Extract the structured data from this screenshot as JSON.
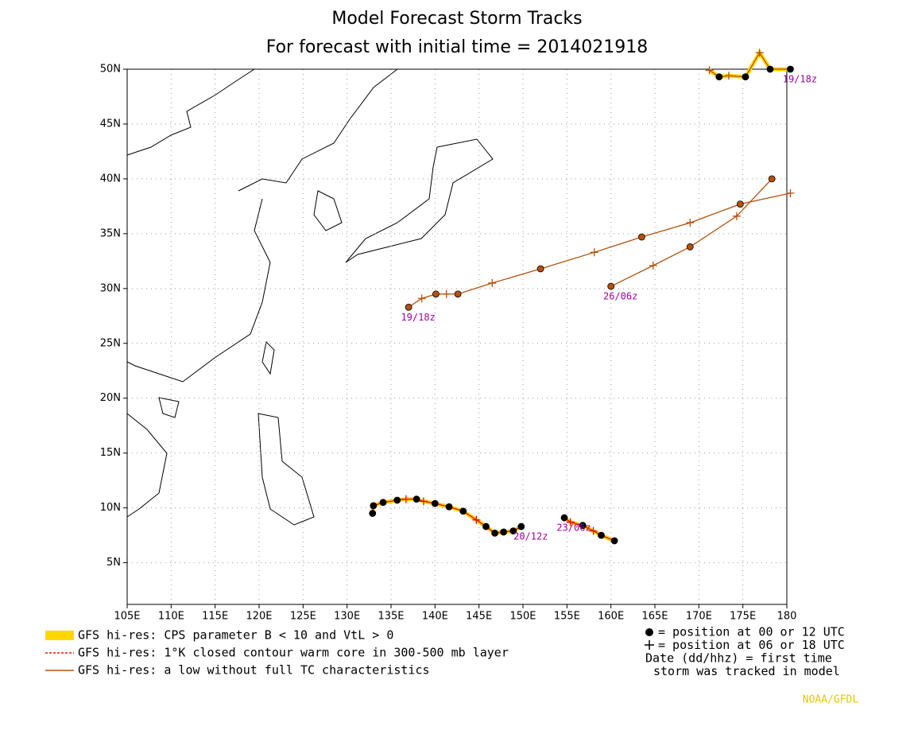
{
  "chart_data": {
    "type": "track-map",
    "title": "Model Forecast Storm Tracks",
    "subtitle": "For forecast with initial time = 2014021918",
    "xlim": [
      105,
      180
    ],
    "ylim": [
      1.2,
      50
    ],
    "grid": true,
    "xticks": [
      {
        "value": 105,
        "label": "105E"
      },
      {
        "value": 110,
        "label": "110E"
      },
      {
        "value": 115,
        "label": "115E"
      },
      {
        "value": 120,
        "label": "120E"
      },
      {
        "value": 125,
        "label": "125E"
      },
      {
        "value": 130,
        "label": "130E"
      },
      {
        "value": 135,
        "label": "135E"
      },
      {
        "value": 140,
        "label": "140E"
      },
      {
        "value": 145,
        "label": "145E"
      },
      {
        "value": 150,
        "label": "150E"
      },
      {
        "value": 155,
        "label": "155E"
      },
      {
        "value": 160,
        "label": "160E"
      },
      {
        "value": 165,
        "label": "165E"
      },
      {
        "value": 170,
        "label": "170E"
      },
      {
        "value": 175,
        "label": "175E"
      },
      {
        "value": 180,
        "label": "180"
      }
    ],
    "yticks": [
      {
        "value": 5,
        "label": "5N"
      },
      {
        "value": 10,
        "label": "10N"
      },
      {
        "value": 15,
        "label": "15N"
      },
      {
        "value": 20,
        "label": "20N"
      },
      {
        "value": 25,
        "label": "25N"
      },
      {
        "value": 30,
        "label": "30N"
      },
      {
        "value": 35,
        "label": "35N"
      },
      {
        "value": 40,
        "label": "40N"
      },
      {
        "value": 45,
        "label": "45N"
      },
      {
        "value": 50,
        "label": "50N"
      }
    ],
    "series": [
      {
        "color": "#b5500b",
        "label": "19/18z",
        "x": [
          137.0,
          138.5,
          140.1,
          141.3,
          142.6,
          146.5,
          152.0,
          158.1,
          163.5,
          169.0,
          174.7,
          180.4
        ],
        "values": [
          28.3,
          29.1,
          29.5,
          29.5,
          29.5,
          30.5,
          31.8,
          33.3,
          34.7,
          36.0,
          37.7,
          38.7
        ],
        "markers": [
          "dot",
          "plus",
          "dot",
          "plus",
          "dot",
          "plus",
          "dot",
          "plus",
          "dot",
          "plus",
          "dot",
          "plus"
        ]
      },
      {
        "color": "#b5500b",
        "label": "26/06z",
        "x": [
          160.0,
          164.8,
          169.0,
          174.3,
          178.3
        ],
        "values": [
          30.2,
          32.1,
          33.8,
          36.6,
          40.0
        ],
        "markers": [
          "dot",
          "plus",
          "dot",
          "plus",
          "dot"
        ]
      },
      {
        "color": "#b5500b",
        "highlight": "#ffd700",
        "label": "19/18z",
        "x": [
          180.4,
          178.1,
          176.9,
          175.3,
          173.4,
          172.3,
          171.2
        ],
        "values": [
          50.0,
          50.0,
          51.5,
          49.3,
          49.4,
          49.3,
          49.9
        ],
        "markers": [
          "dot",
          "dot",
          "plus",
          "dot",
          "plus",
          "dot",
          "plus"
        ]
      },
      {
        "color": "#e01010",
        "highlight": "#ffd700",
        "label": "20/12z",
        "x": [
          149.8,
          148.9,
          147.8,
          146.8,
          145.8,
          144.7,
          143.2,
          141.6,
          140.0,
          138.7,
          137.9,
          136.7,
          135.7,
          134.1,
          133.0,
          132.9
        ],
        "values": [
          8.3,
          7.9,
          7.8,
          7.7,
          8.3,
          8.9,
          9.7,
          10.1,
          10.4,
          10.6,
          10.8,
          10.8,
          10.7,
          10.5,
          10.2,
          9.5
        ],
        "markers": [
          "dot",
          "dot",
          "dot",
          "dot",
          "dot",
          "plus",
          "dot",
          "dot",
          "dot",
          "plus",
          "dot",
          "plus",
          "dot",
          "dot",
          "dot",
          "dot"
        ]
      },
      {
        "color": "#e01010",
        "highlight": "#ffd700",
        "label": "23/06z",
        "x": [
          154.7,
          155.4,
          156.8,
          158.0,
          158.9,
          160.4
        ],
        "values": [
          9.1,
          8.7,
          8.4,
          7.9,
          7.5,
          7.0
        ],
        "markers": [
          "dot",
          "plus",
          "dot",
          "plus",
          "dot",
          "dot"
        ]
      }
    ],
    "legend": [
      {
        "name": "GFS hi-res: CPS parameter B < 10 and VtL > 0",
        "color": "#ffd700",
        "style": "thick"
      },
      {
        "name": "GFS hi-res: 1°K closed contour warm core in 300-500 mb layer",
        "color": "#e01010",
        "style": "dashed"
      },
      {
        "name": "GFS hi-res: a low without full TC characteristics",
        "color": "#b5500b",
        "style": "thin"
      }
    ],
    "notes": [
      "= position at 00 or 12 UTC",
      "= position at 06 or 18 UTC",
      "Date (dd/hhz)  = first time",
      "storm was tracked in model"
    ],
    "credit": "NOAA/GFDL"
  }
}
